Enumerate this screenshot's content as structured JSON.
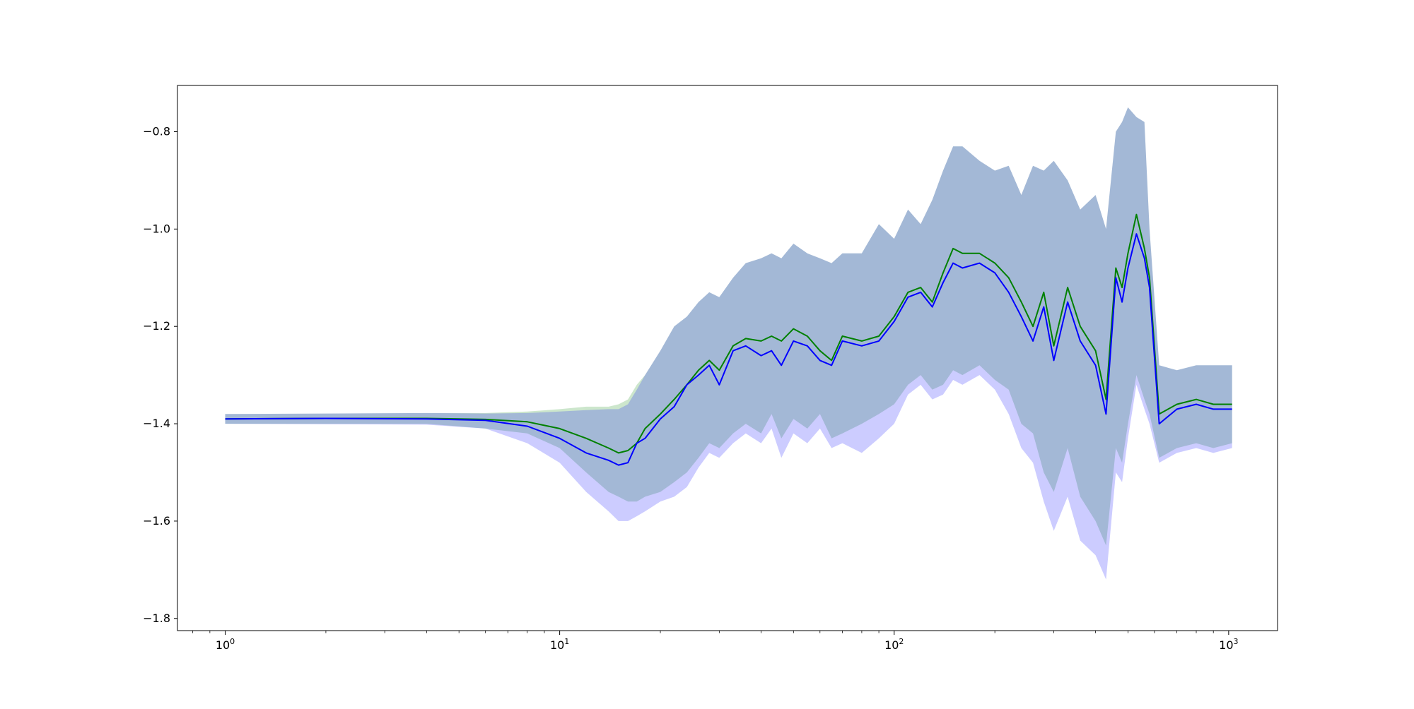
{
  "chart_data": {
    "type": "line",
    "title": "",
    "xlabel": "",
    "ylabel": "",
    "xscale": "log",
    "xlim": [
      0.72,
      1400
    ],
    "ylim": [
      -1.825,
      -0.705
    ],
    "x_ticks": [
      {
        "value": 1,
        "base": "10",
        "exp": "0"
      },
      {
        "value": 10,
        "base": "10",
        "exp": "1"
      },
      {
        "value": 100,
        "base": "10",
        "exp": "2"
      },
      {
        "value": 1000,
        "base": "10",
        "exp": "3"
      }
    ],
    "y_ticks": [
      {
        "value": -0.8,
        "label": "−0.8"
      },
      {
        "value": -1.0,
        "label": "−1.0"
      },
      {
        "value": -1.2,
        "label": "−1.2"
      },
      {
        "value": -1.4,
        "label": "−1.4"
      },
      {
        "value": -1.6,
        "label": "−1.6"
      },
      {
        "value": -1.8,
        "label": "−1.8"
      }
    ],
    "grid": false,
    "legend": "none",
    "x": [
      1,
      2,
      4,
      6,
      8,
      10,
      12,
      14,
      15,
      16,
      17,
      18,
      20,
      22,
      24,
      26,
      28,
      30,
      33,
      36,
      40,
      43,
      46,
      50,
      55,
      60,
      65,
      70,
      80,
      90,
      100,
      110,
      120,
      130,
      140,
      150,
      160,
      180,
      200,
      220,
      240,
      260,
      280,
      300,
      330,
      360,
      400,
      430,
      460,
      480,
      500,
      530,
      560,
      580,
      620,
      700,
      800,
      900,
      1024
    ],
    "series": [
      {
        "color": "#008000",
        "band_color": "#008000",
        "values": [
          -1.39,
          -1.389,
          -1.389,
          -1.391,
          -1.396,
          -1.41,
          -1.43,
          -1.45,
          -1.46,
          -1.455,
          -1.44,
          -1.41,
          -1.38,
          -1.35,
          -1.32,
          -1.29,
          -1.27,
          -1.29,
          -1.24,
          -1.225,
          -1.23,
          -1.22,
          -1.23,
          -1.205,
          -1.22,
          -1.25,
          -1.27,
          -1.22,
          -1.23,
          -1.22,
          -1.18,
          -1.13,
          -1.12,
          -1.15,
          -1.09,
          -1.04,
          -1.05,
          -1.05,
          -1.07,
          -1.1,
          -1.15,
          -1.2,
          -1.13,
          -1.24,
          -1.12,
          -1.2,
          -1.25,
          -1.35,
          -1.08,
          -1.12,
          -1.05,
          -0.97,
          -1.04,
          -1.1,
          -1.38,
          -1.36,
          -1.35,
          -1.36,
          -1.36
        ],
        "upper": [
          -1.38,
          -1.379,
          -1.378,
          -1.378,
          -1.375,
          -1.37,
          -1.365,
          -1.365,
          -1.36,
          -1.35,
          -1.32,
          -1.3,
          -1.25,
          -1.2,
          -1.18,
          -1.15,
          -1.13,
          -1.14,
          -1.1,
          -1.07,
          -1.06,
          -1.05,
          -1.06,
          -1.03,
          -1.05,
          -1.06,
          -1.07,
          -1.05,
          -1.05,
          -0.99,
          -1.02,
          -0.96,
          -0.99,
          -0.94,
          -0.88,
          -0.83,
          -0.83,
          -0.86,
          -0.88,
          -0.87,
          -0.93,
          -0.87,
          -0.88,
          -0.86,
          -0.9,
          -0.96,
          -0.93,
          -1.0,
          -0.8,
          -0.78,
          -0.75,
          -0.77,
          -0.78,
          -1.0,
          -1.28,
          -1.29,
          -1.28,
          -1.28,
          -1.28
        ],
        "lower": [
          -1.4,
          -1.4,
          -1.4,
          -1.41,
          -1.42,
          -1.45,
          -1.5,
          -1.54,
          -1.55,
          -1.56,
          -1.56,
          -1.55,
          -1.54,
          -1.52,
          -1.5,
          -1.47,
          -1.44,
          -1.45,
          -1.42,
          -1.4,
          -1.42,
          -1.38,
          -1.43,
          -1.39,
          -1.41,
          -1.38,
          -1.43,
          -1.42,
          -1.4,
          -1.38,
          -1.36,
          -1.32,
          -1.3,
          -1.33,
          -1.32,
          -1.29,
          -1.3,
          -1.28,
          -1.31,
          -1.33,
          -1.4,
          -1.42,
          -1.5,
          -1.54,
          -1.45,
          -1.55,
          -1.6,
          -1.65,
          -1.45,
          -1.48,
          -1.4,
          -1.3,
          -1.35,
          -1.38,
          -1.47,
          -1.45,
          -1.44,
          -1.45,
          -1.44
        ]
      },
      {
        "color": "#0000ff",
        "band_color": "#0000ff",
        "values": [
          -1.39,
          -1.389,
          -1.39,
          -1.393,
          -1.405,
          -1.43,
          -1.46,
          -1.475,
          -1.485,
          -1.48,
          -1.44,
          -1.43,
          -1.39,
          -1.365,
          -1.32,
          -1.3,
          -1.28,
          -1.32,
          -1.25,
          -1.24,
          -1.26,
          -1.25,
          -1.28,
          -1.23,
          -1.24,
          -1.27,
          -1.28,
          -1.23,
          -1.24,
          -1.23,
          -1.19,
          -1.14,
          -1.13,
          -1.16,
          -1.11,
          -1.07,
          -1.08,
          -1.07,
          -1.09,
          -1.13,
          -1.18,
          -1.23,
          -1.16,
          -1.27,
          -1.15,
          -1.23,
          -1.28,
          -1.38,
          -1.1,
          -1.15,
          -1.08,
          -1.01,
          -1.06,
          -1.12,
          -1.4,
          -1.37,
          -1.36,
          -1.37,
          -1.37
        ],
        "upper": [
          -1.38,
          -1.379,
          -1.378,
          -1.379,
          -1.378,
          -1.375,
          -1.372,
          -1.37,
          -1.37,
          -1.36,
          -1.33,
          -1.3,
          -1.25,
          -1.2,
          -1.18,
          -1.15,
          -1.13,
          -1.14,
          -1.1,
          -1.07,
          -1.06,
          -1.05,
          -1.06,
          -1.03,
          -1.05,
          -1.06,
          -1.07,
          -1.05,
          -1.05,
          -0.99,
          -1.02,
          -0.96,
          -0.99,
          -0.94,
          -0.88,
          -0.83,
          -0.83,
          -0.86,
          -0.88,
          -0.87,
          -0.93,
          -0.87,
          -0.88,
          -0.86,
          -0.9,
          -0.96,
          -0.93,
          -1.0,
          -0.8,
          -0.78,
          -0.75,
          -0.77,
          -0.78,
          -1.0,
          -1.28,
          -1.29,
          -1.28,
          -1.28,
          -1.28
        ],
        "lower": [
          -1.4,
          -1.401,
          -1.402,
          -1.41,
          -1.44,
          -1.48,
          -1.54,
          -1.58,
          -1.6,
          -1.6,
          -1.59,
          -1.58,
          -1.56,
          -1.55,
          -1.53,
          -1.49,
          -1.46,
          -1.47,
          -1.44,
          -1.42,
          -1.44,
          -1.41,
          -1.47,
          -1.42,
          -1.44,
          -1.41,
          -1.45,
          -1.44,
          -1.46,
          -1.43,
          -1.4,
          -1.34,
          -1.32,
          -1.35,
          -1.34,
          -1.31,
          -1.32,
          -1.3,
          -1.33,
          -1.38,
          -1.45,
          -1.48,
          -1.56,
          -1.62,
          -1.55,
          -1.64,
          -1.67,
          -1.72,
          -1.5,
          -1.52,
          -1.43,
          -1.32,
          -1.37,
          -1.4,
          -1.48,
          -1.46,
          -1.45,
          -1.46,
          -1.45
        ]
      }
    ]
  }
}
